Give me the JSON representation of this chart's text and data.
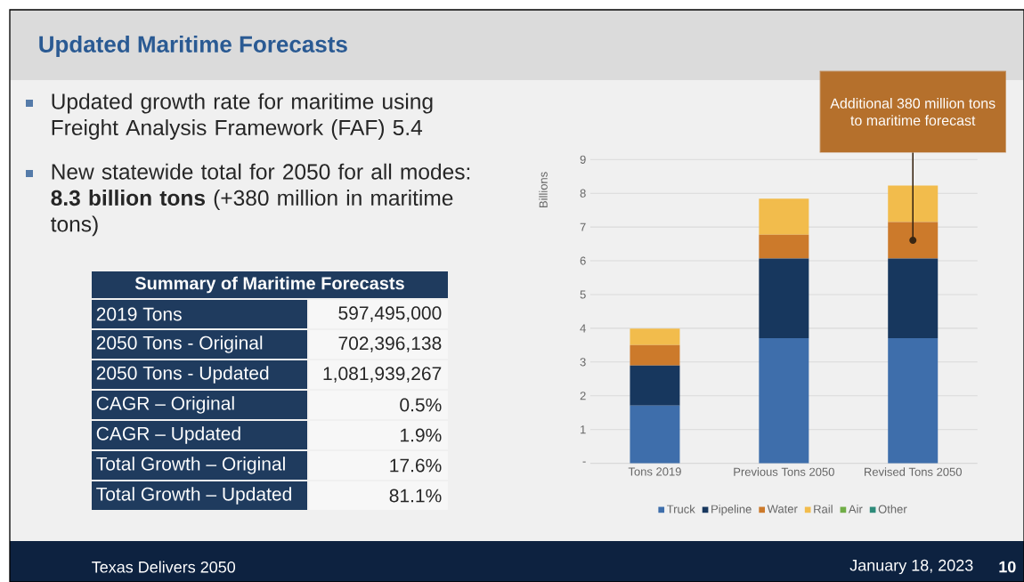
{
  "chart_data": {
    "type": "bar",
    "stacked": true,
    "title": "Updated Maritime Forecasts",
    "ylabel": "Billions",
    "categories": [
      "Tons 2019",
      "Previous Tons 2050",
      "Revised Tons 2050"
    ],
    "series": [
      {
        "name": "Truck",
        "color": "#3e6eab",
        "values": [
          1.71,
          3.71,
          3.71
        ]
      },
      {
        "name": "Pipeline",
        "color": "#17375e",
        "values": [
          1.19,
          2.36,
          2.36
        ]
      },
      {
        "name": "Water",
        "color": "#cc7a2b",
        "values": [
          0.6,
          0.7,
          1.08
        ]
      },
      {
        "name": "Rail",
        "color": "#f2bc4c",
        "values": [
          0.49,
          1.07,
          1.08
        ]
      },
      {
        "name": "Air",
        "color": "#70ad47",
        "values": [
          0,
          0,
          0
        ]
      },
      {
        "name": "Other",
        "color": "#2e8b7a",
        "values": [
          0,
          0,
          0
        ]
      }
    ],
    "ylim": [
      0,
      9
    ],
    "yticks": [
      {
        "value": 0,
        "label": "-"
      },
      1,
      2,
      3,
      4,
      5,
      6,
      7,
      8,
      9
    ],
    "grid": "y",
    "legend": "bottom",
    "annotations": [
      "Updated growth rate for maritime using Freight Analysis Framework (FAF) 5.4",
      "New statewide total for 2050 for all modes: **8.3 billion tons** (+380 million in maritime tons)",
      "Summary of Maritime Forecasts",
      "2019 Tons",
      "597,495,000",
      "2050 Tons - Original",
      "702,396,138",
      "2050 Tons - Updated",
      "1,081,939,267",
      "CAGR – Original",
      "0.5%",
      "CAGR – Updated",
      "1.9%",
      "Total Growth – Original",
      "17.6%",
      "Total Growth – Updated",
      "81.1%",
      "Texas Delivers 2050",
      "January 18, 2023",
      "10",
      "Additional 380 million tons to maritime forecast"
    ]
  }
}
